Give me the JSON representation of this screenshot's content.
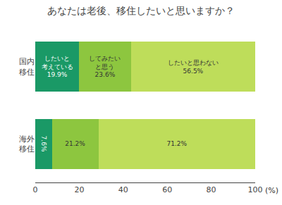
{
  "chart_data": {
    "type": "bar",
    "orientation": "horizontal",
    "stacked": true,
    "title": "あなたは老後、移住したいと思いますか？",
    "categories": [
      "国内\n移住",
      "海外\n移住"
    ],
    "series": [
      {
        "color": "#1a9966",
        "values": [
          19.9,
          7.6
        ],
        "value_labels": [
          "したいと\n考えている\n19.9%",
          "7.6%"
        ]
      },
      {
        "color": "#8dc63f",
        "values": [
          23.6,
          21.2
        ],
        "value_labels": [
          "してみたい\nと思う\n23.6%",
          "21.2%"
        ]
      },
      {
        "color": "#bedd5a",
        "values": [
          56.5,
          71.2
        ],
        "value_labels": [
          "したいと思わない\n56.5%",
          "71.2%"
        ]
      }
    ],
    "xlabel": "(%)",
    "xlim": [
      0,
      100
    ],
    "xticks": [
      0,
      20,
      40,
      60,
      80,
      100
    ],
    "data_labels": true,
    "grid": false
  }
}
